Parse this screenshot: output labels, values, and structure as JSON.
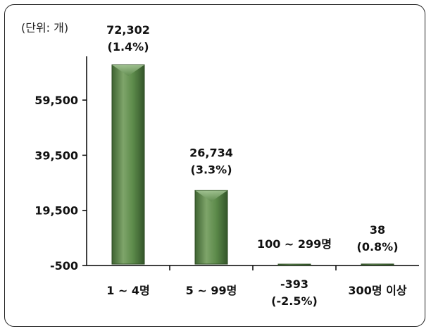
{
  "unit_label": "(단위: 개)",
  "chart_data": {
    "type": "bar",
    "categories": [
      "1 ~ 4명",
      "5 ~ 99명",
      "100 ~ 299명",
      "300명 이상"
    ],
    "values": [
      72302,
      26734,
      -393,
      38
    ],
    "data_labels": [
      [
        "72,302",
        "(1.4%)"
      ],
      [
        "26,734",
        "(3.3%)"
      ],
      [
        "-393",
        "(-2.5%)"
      ],
      [
        "38",
        "(0.8%)"
      ]
    ],
    "y_ticks": [
      {
        "value": -500,
        "label": "-500"
      },
      {
        "value": 19500,
        "label": "19,500"
      },
      {
        "value": 39500,
        "label": "39,500"
      },
      {
        "value": 59500,
        "label": "59,500"
      }
    ],
    "ylim": [
      -500,
      72302
    ],
    "bar_color": "#5f8a4e",
    "grid": false,
    "title": "",
    "xlabel": "",
    "ylabel": ""
  }
}
